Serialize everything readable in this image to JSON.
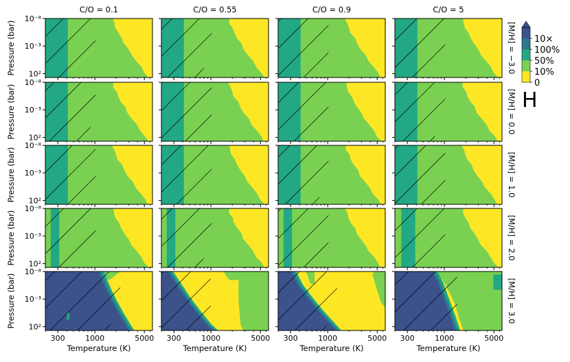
{
  "chart_data": {
    "type": "heatmap",
    "title": "H",
    "xlabel": "Temperature (K)",
    "ylabel": "Pressure (bar)",
    "columns": [
      "C/O = 0.1",
      "C/O = 0.55",
      "C/O = 0.9",
      "C/O = 5"
    ],
    "rows": [
      "[M/H] = −3.0",
      "[M/H] = 0.0",
      "[M/H] = 1.0",
      "[M/H] = 2.0",
      "[M/H] = 3.0"
    ],
    "x_scale": "log",
    "x_range": [
      200,
      6500
    ],
    "x_ticks": [
      300,
      1000,
      5000
    ],
    "x_ticklabels": [
      "300",
      "1000",
      "5000"
    ],
    "y_scale": "log",
    "y_range": [
      1e-08,
      500
    ],
    "y_ticks": [
      1e-08,
      0.001,
      100
    ],
    "y_ticklabels": [
      "10⁻⁸",
      "10⁻³",
      "10²"
    ],
    "colorbar": {
      "levels": [
        "0",
        "10%",
        "50%",
        "100%",
        "10×"
      ],
      "colors": [
        "#fde725",
        "#7ad151",
        "#22a884",
        "#2a788e",
        "#3b528b"
      ],
      "extend": "max"
    },
    "hatch_region": "hatched region at low temperatures in every panel"
  }
}
